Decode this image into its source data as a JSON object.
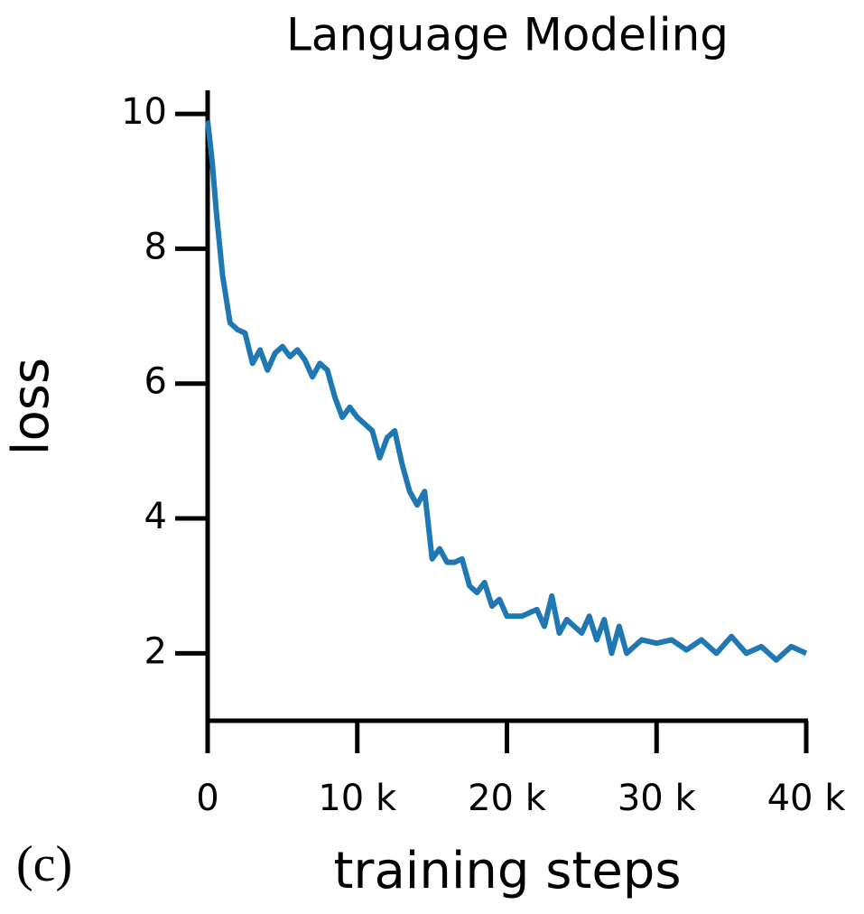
{
  "chart_data": {
    "type": "line",
    "title": "Language Modeling",
    "xlabel": "training steps",
    "ylabel": "loss",
    "annotation": "(c)",
    "x": [
      0,
      300,
      600,
      1000,
      1500,
      2000,
      2500,
      3000,
      3500,
      4000,
      4500,
      5000,
      5500,
      6000,
      6500,
      7000,
      7500,
      8000,
      8500,
      9000,
      9500,
      10000,
      10500,
      11000,
      11500,
      12000,
      12500,
      13000,
      13500,
      14000,
      14500,
      15000,
      15500,
      16000,
      16500,
      17000,
      17500,
      18000,
      18500,
      19000,
      19500,
      20000,
      21000,
      22000,
      22500,
      23000,
      23500,
      24000,
      25000,
      25500,
      26000,
      26500,
      27000,
      27500,
      28000,
      29000,
      30000,
      31000,
      32000,
      33000,
      34000,
      35000,
      36000,
      37000,
      38000,
      39000,
      40000
    ],
    "values": [
      9.9,
      9.3,
      8.5,
      7.6,
      6.9,
      6.8,
      6.75,
      6.3,
      6.5,
      6.2,
      6.45,
      6.55,
      6.4,
      6.5,
      6.35,
      6.1,
      6.3,
      6.2,
      5.8,
      5.5,
      5.65,
      5.5,
      5.4,
      5.3,
      4.9,
      5.2,
      5.3,
      4.8,
      4.4,
      4.2,
      4.4,
      3.4,
      3.55,
      3.35,
      3.35,
      3.4,
      3.0,
      2.9,
      3.05,
      2.7,
      2.8,
      2.55,
      2.55,
      2.65,
      2.4,
      2.85,
      2.3,
      2.5,
      2.3,
      2.55,
      2.2,
      2.5,
      2.0,
      2.4,
      2.0,
      2.2,
      2.15,
      2.2,
      2.05,
      2.2,
      2.0,
      2.25,
      2.0,
      2.1,
      1.9,
      2.1,
      2.0
    ],
    "color": "#1f77b4",
    "xlim": [
      0,
      40000
    ],
    "xticks": [
      0,
      {
        "value": 10000,
        "label": "10 k"
      },
      {
        "value": 20000,
        "label": "20 k"
      },
      {
        "value": 30000,
        "label": "30 k"
      },
      {
        "value": 40000,
        "label": "40 k"
      }
    ],
    "ylim": [
      1,
      10.35
    ],
    "yticks": [
      2,
      4,
      6,
      8,
      10
    ],
    "grid": false
  }
}
